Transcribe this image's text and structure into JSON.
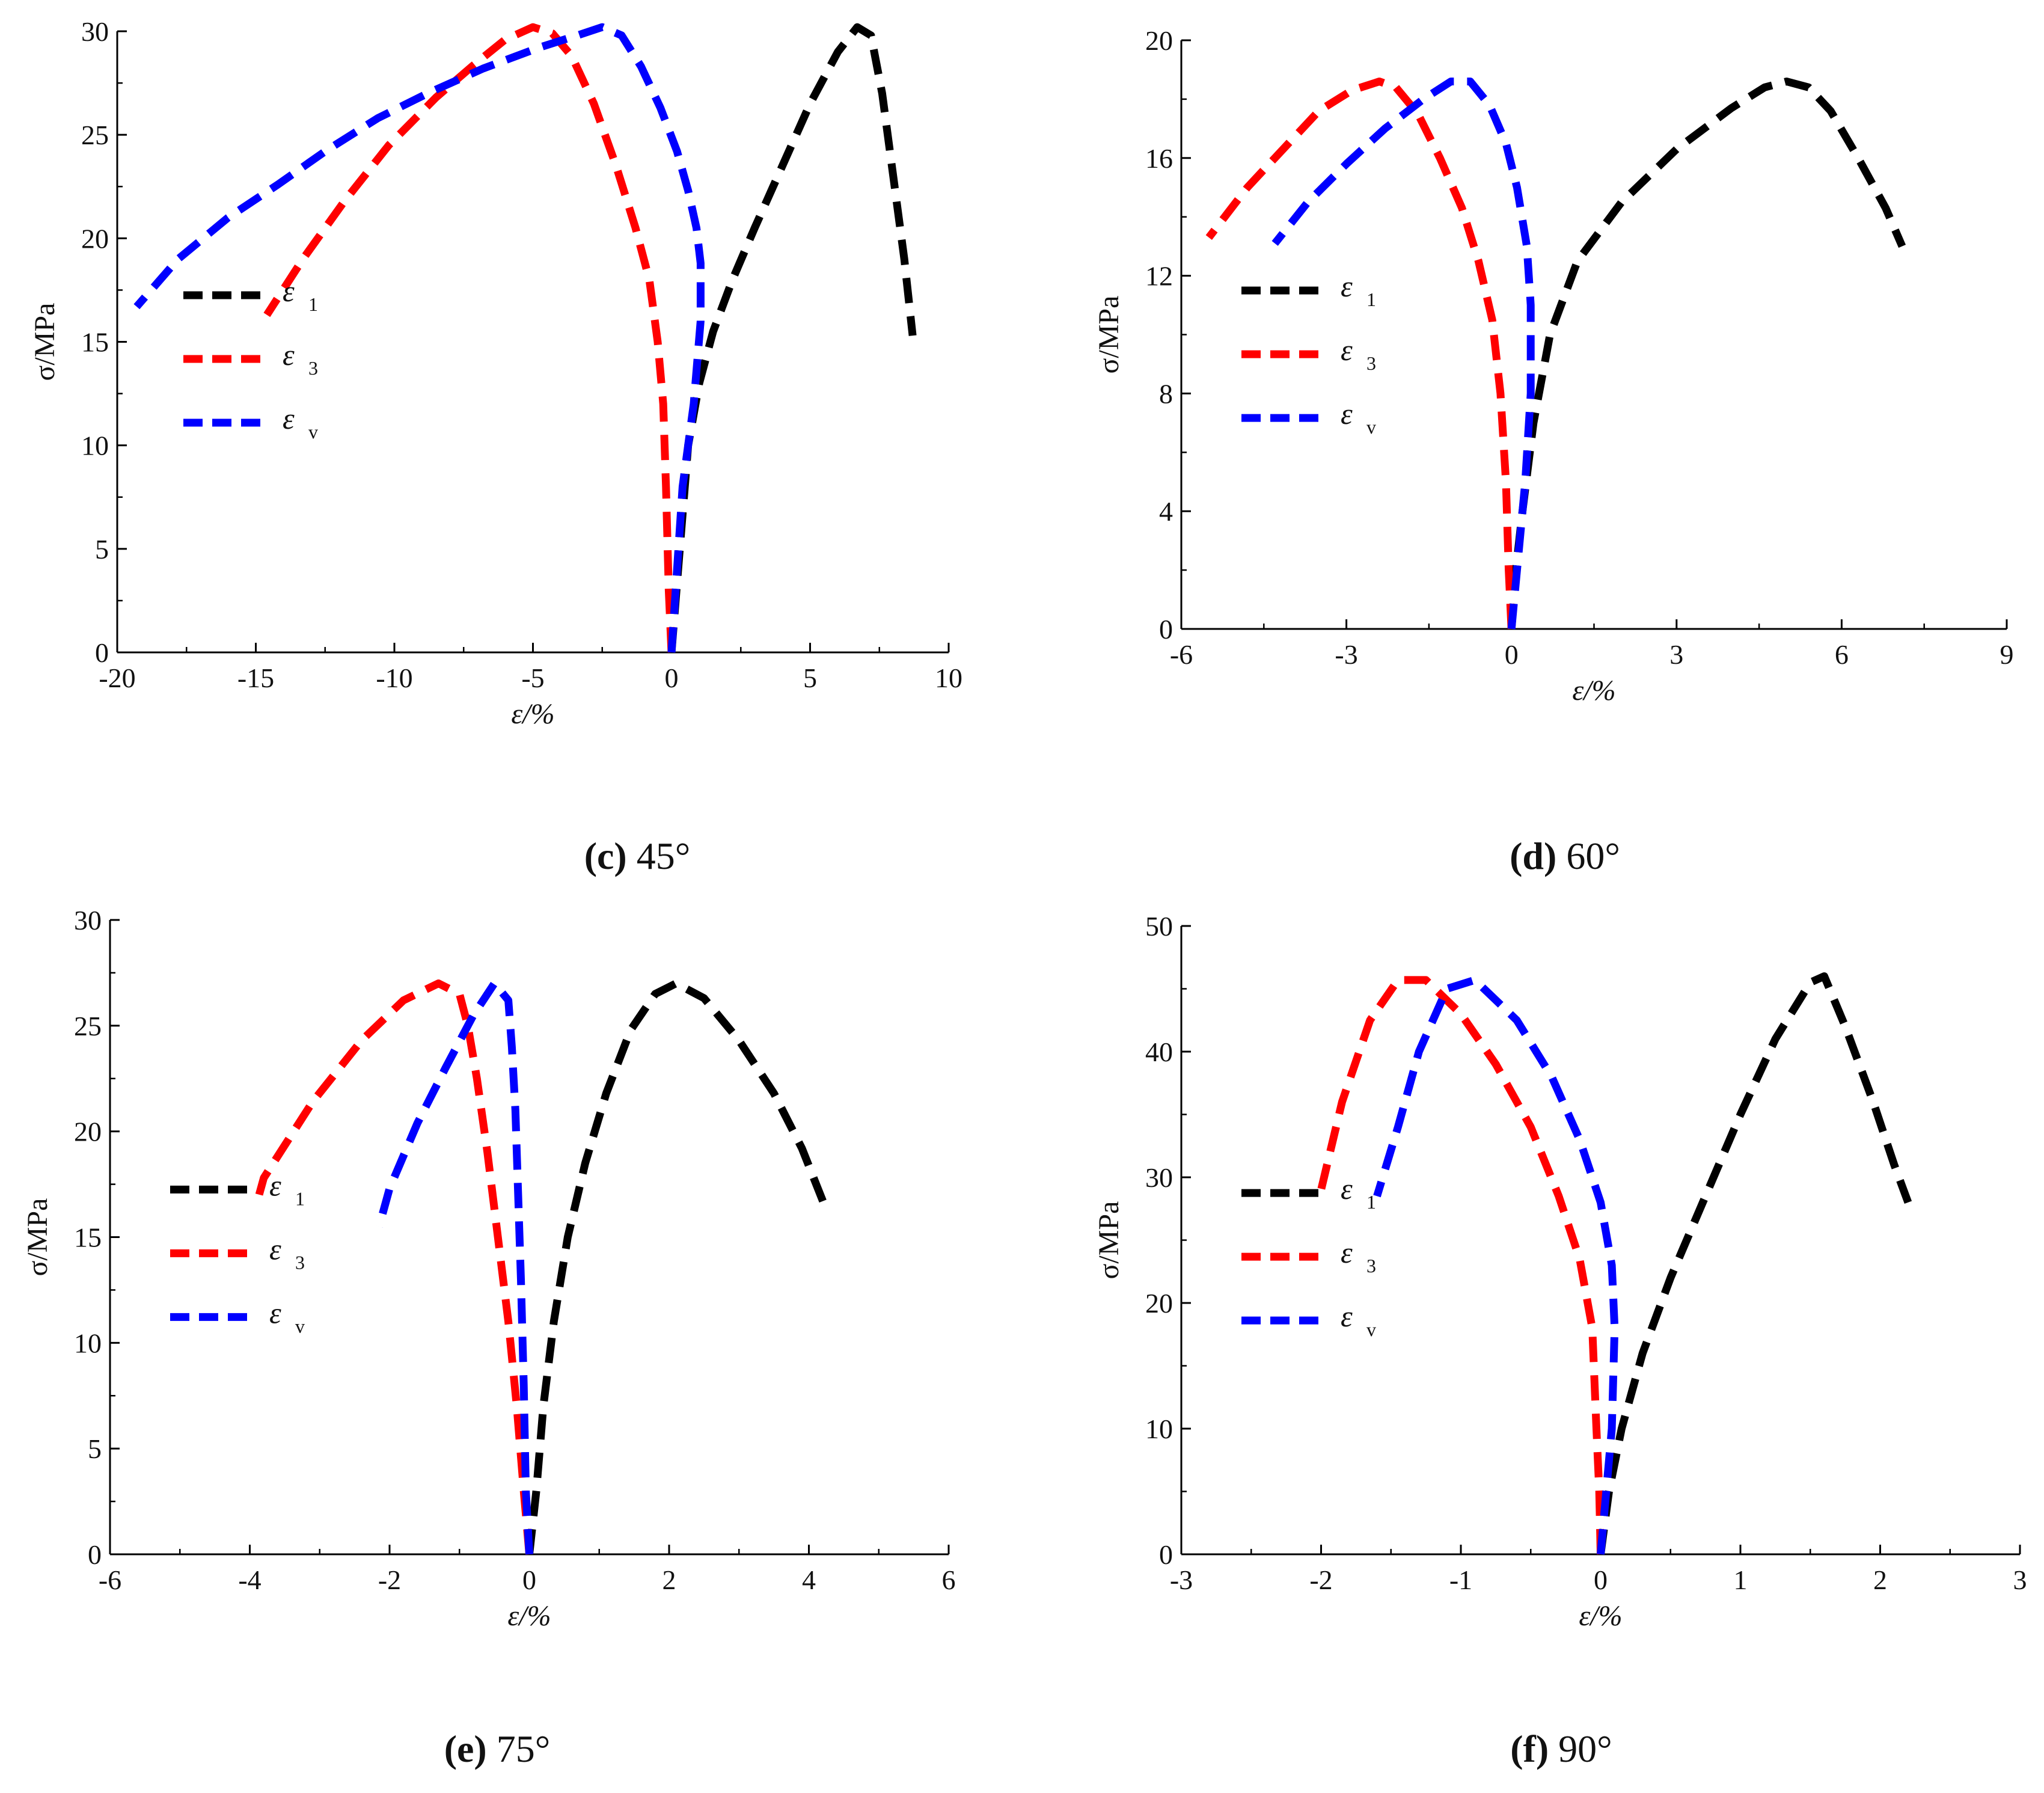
{
  "colors": {
    "e1": "#000000",
    "e3": "#ff0000",
    "ev": "#0000ff",
    "axis": "#000000"
  },
  "chart_data": [
    {
      "id": "c",
      "type": "line",
      "caption": {
        "letter": "(c)",
        "angle": "45°"
      },
      "xlabel": "ε/%",
      "ylabel": "σ/MPa",
      "xlim": [
        -20,
        10
      ],
      "ylim": [
        0,
        30
      ],
      "xticks": [
        -20,
        -15,
        -10,
        -5,
        0,
        5,
        10
      ],
      "yticks": [
        0,
        5,
        10,
        15,
        20,
        25,
        30
      ],
      "legend": {
        "position": "left-middle",
        "entries": [
          {
            "sym": "ε",
            "sub": "1",
            "series": 0
          },
          {
            "sym": "ε",
            "sub": "3",
            "series": 1
          },
          {
            "sym": "ε",
            "sub": "v",
            "series": 2
          }
        ]
      },
      "series": [
        {
          "name": "ε1",
          "color": "e1",
          "points": [
            [
              0,
              0
            ],
            [
              0.3,
              5
            ],
            [
              0.6,
              10
            ],
            [
              1.0,
              13
            ],
            [
              1.5,
              15.5
            ],
            [
              2.2,
              18
            ],
            [
              3,
              20.5
            ],
            [
              4,
              23.5
            ],
            [
              5,
              26.5
            ],
            [
              6,
              29
            ],
            [
              6.7,
              30.2
            ],
            [
              7.2,
              29.8
            ],
            [
              7.6,
              27
            ],
            [
              8,
              23
            ],
            [
              8.4,
              19
            ],
            [
              8.7,
              15.3
            ]
          ]
        },
        {
          "name": "ε3",
          "color": "e3",
          "points": [
            [
              0,
              0
            ],
            [
              -0.1,
              3
            ],
            [
              -0.2,
              8
            ],
            [
              -0.3,
              12
            ],
            [
              -0.5,
              15
            ],
            [
              -0.8,
              18
            ],
            [
              -1.3,
              20.5
            ],
            [
              -2,
              23.5
            ],
            [
              -2.8,
              26.5
            ],
            [
              -3.6,
              28.8
            ],
            [
              -4.3,
              29.9
            ],
            [
              -5,
              30.2
            ],
            [
              -6,
              29.6
            ],
            [
              -7.2,
              28.3
            ],
            [
              -8.5,
              26.8
            ],
            [
              -10.2,
              24.5
            ],
            [
              -11.8,
              21.8
            ],
            [
              -13.3,
              19
            ],
            [
              -14.6,
              16.3
            ]
          ]
        },
        {
          "name": "εv",
          "color": "ev",
          "points": [
            [
              0,
              0
            ],
            [
              0.15,
              3
            ],
            [
              0.4,
              8
            ],
            [
              0.8,
              12
            ],
            [
              1.05,
              16
            ],
            [
              1.05,
              18.8
            ],
            [
              0.9,
              20.5
            ],
            [
              0.6,
              22.3
            ],
            [
              0.2,
              24.2
            ],
            [
              -0.4,
              26.3
            ],
            [
              -1.1,
              28.3
            ],
            [
              -1.8,
              29.8
            ],
            [
              -2.5,
              30.2
            ],
            [
              -3.4,
              29.8
            ],
            [
              -4.8,
              29.2
            ],
            [
              -6.8,
              28.2
            ],
            [
              -8.8,
              27
            ],
            [
              -10.6,
              25.8
            ],
            [
              -12.5,
              24.2
            ],
            [
              -14.2,
              22.6
            ],
            [
              -16,
              21
            ],
            [
              -17.8,
              19
            ],
            [
              -19.3,
              16.7
            ]
          ]
        }
      ]
    },
    {
      "id": "d",
      "type": "line",
      "caption": {
        "letter": "(d)",
        "angle": "60°"
      },
      "xlabel": "ε/%",
      "ylabel": "σ/MPa",
      "xlim": [
        -6,
        9
      ],
      "ylim": [
        0,
        20
      ],
      "xticks": [
        -6,
        -3,
        0,
        3,
        6,
        9
      ],
      "yticks": [
        0,
        4,
        8,
        12,
        16,
        20
      ],
      "legend": {
        "position": "left-middle",
        "entries": [
          {
            "sym": "ε",
            "sub": "1",
            "series": 0
          },
          {
            "sym": "ε",
            "sub": "3",
            "series": 1
          },
          {
            "sym": "ε",
            "sub": "v",
            "series": 2
          }
        ]
      },
      "series": [
        {
          "name": "ε1",
          "color": "e1",
          "points": [
            [
              0,
              0
            ],
            [
              0.08,
              2
            ],
            [
              0.2,
              4
            ],
            [
              0.4,
              7
            ],
            [
              0.7,
              10
            ],
            [
              1.2,
              12.5
            ],
            [
              2,
              14.5
            ],
            [
              3,
              16.3
            ],
            [
              4,
              17.7
            ],
            [
              4.6,
              18.4
            ],
            [
              5,
              18.6
            ],
            [
              5.4,
              18.4
            ],
            [
              5.8,
              17.6
            ],
            [
              6.3,
              16
            ],
            [
              6.8,
              14.3
            ],
            [
              7.1,
              13
            ]
          ]
        },
        {
          "name": "ε3",
          "color": "e3",
          "points": [
            [
              0,
              0
            ],
            [
              -0.05,
              2
            ],
            [
              -0.1,
              5
            ],
            [
              -0.2,
              8
            ],
            [
              -0.35,
              10.5
            ],
            [
              -0.6,
              12.5
            ],
            [
              -0.9,
              14.3
            ],
            [
              -1.3,
              16
            ],
            [
              -1.7,
              17.5
            ],
            [
              -2.1,
              18.4
            ],
            [
              -2.4,
              18.6
            ],
            [
              -2.9,
              18.3
            ],
            [
              -3.5,
              17.6
            ],
            [
              -4.1,
              16.4
            ],
            [
              -4.8,
              15
            ],
            [
              -5.5,
              13.3
            ]
          ]
        },
        {
          "name": "εv",
          "color": "ev",
          "points": [
            [
              0,
              0
            ],
            [
              0.1,
              2
            ],
            [
              0.25,
              5
            ],
            [
              0.35,
              8
            ],
            [
              0.35,
              11
            ],
            [
              0.28,
              13
            ],
            [
              0.1,
              15
            ],
            [
              -0.1,
              16.5
            ],
            [
              -0.4,
              17.8
            ],
            [
              -0.75,
              18.6
            ],
            [
              -1.1,
              18.6
            ],
            [
              -1.6,
              18
            ],
            [
              -2.3,
              17
            ],
            [
              -3,
              15.8
            ],
            [
              -3.7,
              14.5
            ],
            [
              -4.3,
              13.1
            ]
          ]
        }
      ]
    },
    {
      "id": "e",
      "type": "line",
      "caption": {
        "letter": "(e)",
        "angle": "75°"
      },
      "xlabel": "ε/%",
      "ylabel": "σ/MPa",
      "xlim": [
        -6,
        6
      ],
      "ylim": [
        0,
        30
      ],
      "xticks": [
        -6,
        -4,
        -2,
        0,
        2,
        4,
        6
      ],
      "yticks": [
        0,
        5,
        10,
        15,
        20,
        25,
        30
      ],
      "legend": {
        "position": "left-middle",
        "entries": [
          {
            "sym": "ε",
            "sub": "1",
            "series": 0
          },
          {
            "sym": "ε",
            "sub": "3",
            "series": 1
          },
          {
            "sym": "ε",
            "sub": "v",
            "series": 2
          }
        ]
      },
      "series": [
        {
          "name": "ε1",
          "color": "e1",
          "points": [
            [
              0,
              0
            ],
            [
              0.1,
              3
            ],
            [
              0.2,
              7
            ],
            [
              0.35,
              11
            ],
            [
              0.55,
              15
            ],
            [
              0.8,
              18.5
            ],
            [
              1.1,
              21.8
            ],
            [
              1.45,
              24.8
            ],
            [
              1.8,
              26.5
            ],
            [
              2.1,
              27
            ],
            [
              2.5,
              26.3
            ],
            [
              3,
              24.3
            ],
            [
              3.5,
              21.8
            ],
            [
              3.9,
              19.2
            ],
            [
              4.2,
              16.7
            ]
          ]
        },
        {
          "name": "ε3",
          "color": "e3",
          "points": [
            [
              0,
              0
            ],
            [
              -0.08,
              3
            ],
            [
              -0.18,
              7
            ],
            [
              -0.3,
              11
            ],
            [
              -0.45,
              15
            ],
            [
              -0.6,
              19
            ],
            [
              -0.75,
              22.5
            ],
            [
              -0.88,
              25
            ],
            [
              -1,
              26.5
            ],
            [
              -1.3,
              27
            ],
            [
              -1.8,
              26.2
            ],
            [
              -2.4,
              24.3
            ],
            [
              -3.1,
              21.4
            ],
            [
              -3.8,
              17.8
            ],
            [
              -3.9,
              16.6
            ]
          ]
        },
        {
          "name": "εv",
          "color": "ev",
          "points": [
            [
              0,
              0
            ],
            [
              -0.05,
              3
            ],
            [
              -0.08,
              8
            ],
            [
              -0.12,
              13
            ],
            [
              -0.16,
              17
            ],
            [
              -0.2,
              21
            ],
            [
              -0.25,
              24
            ],
            [
              -0.3,
              26.2
            ],
            [
              -0.5,
              27
            ],
            [
              -0.8,
              25.5
            ],
            [
              -1.2,
              23
            ],
            [
              -1.6,
              20.4
            ],
            [
              -2,
              17.3
            ],
            [
              -2.15,
              15.5
            ]
          ]
        }
      ]
    },
    {
      "id": "f",
      "type": "line",
      "caption": {
        "letter": "(f)",
        "angle": "90°"
      },
      "xlabel": "ε/%",
      "ylabel": "σ/MPa",
      "xlim": [
        -3,
        3
      ],
      "ylim": [
        0,
        50
      ],
      "xticks": [
        -3,
        -2,
        -1,
        0,
        1,
        2,
        3
      ],
      "yticks": [
        0,
        10,
        20,
        30,
        40,
        50
      ],
      "legend": {
        "position": "left-middle",
        "entries": [
          {
            "sym": "ε",
            "sub": "1",
            "series": 0
          },
          {
            "sym": "ε",
            "sub": "3",
            "series": 1
          },
          {
            "sym": "ε",
            "sub": "v",
            "series": 2
          }
        ]
      },
      "series": [
        {
          "name": "ε1",
          "color": "e1",
          "points": [
            [
              0,
              0
            ],
            [
              0.06,
              5
            ],
            [
              0.15,
              10
            ],
            [
              0.3,
              16
            ],
            [
              0.5,
              22
            ],
            [
              0.75,
              28.5
            ],
            [
              1,
              35
            ],
            [
              1.25,
              41
            ],
            [
              1.5,
              45.5
            ],
            [
              1.6,
              46
            ],
            [
              1.75,
              42
            ],
            [
              1.95,
              36
            ],
            [
              2.1,
              31
            ],
            [
              2.2,
              28
            ]
          ]
        },
        {
          "name": "ε3",
          "color": "e3",
          "points": [
            [
              0,
              0
            ],
            [
              -0.01,
              5
            ],
            [
              -0.03,
              10
            ],
            [
              -0.06,
              18
            ],
            [
              -0.15,
              23.5
            ],
            [
              -0.3,
              28.5
            ],
            [
              -0.5,
              34
            ],
            [
              -0.75,
              39
            ],
            [
              -1,
              43
            ],
            [
              -1.25,
              45.7
            ],
            [
              -1.45,
              45.7
            ],
            [
              -1.65,
              42.5
            ],
            [
              -1.85,
              36
            ],
            [
              -2,
              29
            ]
          ]
        },
        {
          "name": "εv",
          "color": "ev",
          "points": [
            [
              0,
              0
            ],
            [
              0.04,
              5
            ],
            [
              0.08,
              10
            ],
            [
              0.1,
              18
            ],
            [
              0.08,
              23
            ],
            [
              0,
              28
            ],
            [
              -0.15,
              33
            ],
            [
              -0.35,
              38
            ],
            [
              -0.6,
              42.5
            ],
            [
              -0.9,
              45.7
            ],
            [
              -1.1,
              45
            ],
            [
              -1.3,
              40
            ],
            [
              -1.45,
              34
            ],
            [
              -1.6,
              28.5
            ]
          ]
        }
      ]
    }
  ]
}
